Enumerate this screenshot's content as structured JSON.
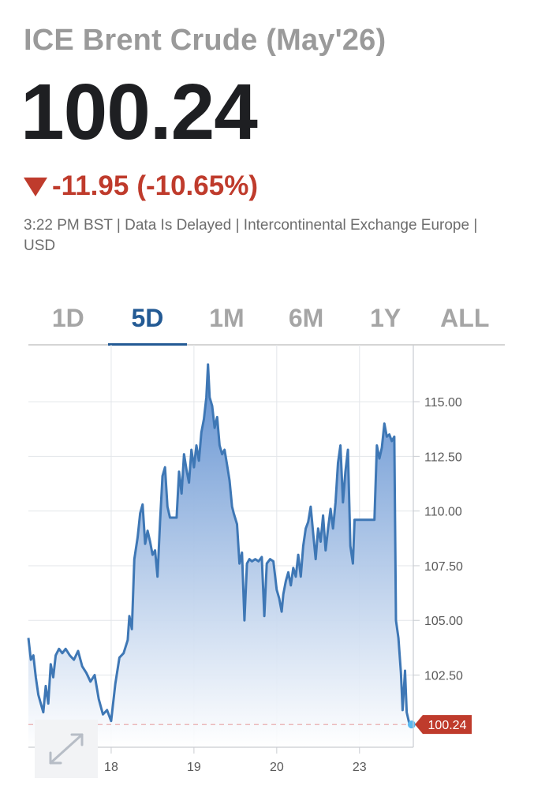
{
  "header": {
    "title": "ICE Brent Crude (May'26)",
    "price": "100.24",
    "change": "-11.95",
    "change_pct": "(-10.65%)",
    "meta": "3:22 PM BST | Data Is Delayed | Intercontinental Exchange Europe | USD"
  },
  "colors": {
    "negative": "#bf3b2c",
    "accent": "#235a94",
    "line": "#3e77b5",
    "area_top": "#5f8fd0",
    "price_marker": "#5bb8ef"
  },
  "tabs": [
    {
      "label": "1D",
      "active": false
    },
    {
      "label": "5D",
      "active": true
    },
    {
      "label": "1M",
      "active": false
    },
    {
      "label": "6M",
      "active": false
    },
    {
      "label": "1Y",
      "active": false
    },
    {
      "label": "ALL",
      "active": false
    }
  ],
  "icons": {
    "expand": "expand-arrows-icon",
    "change": "down-triangle-icon"
  },
  "chart_data": {
    "type": "area",
    "title": "",
    "xlabel": "",
    "ylabel": "",
    "x_ticks": [
      {
        "label": "18",
        "x": 1.0
      },
      {
        "label": "19",
        "x": 2.0
      },
      {
        "label": "20",
        "x": 3.0
      },
      {
        "label": "23",
        "x": 4.0
      }
    ],
    "ylim": [
      99.2,
      117.6
    ],
    "xlim": [
      0,
      4.65
    ],
    "y_ticks": [
      "115.00",
      "112.50",
      "110.00",
      "107.50",
      "105.00",
      "102.50"
    ],
    "y_tick_values": [
      115,
      112.5,
      110,
      107.5,
      105,
      102.5
    ],
    "grid": true,
    "last_price": {
      "label": "100.24",
      "value": 100.24
    },
    "series": [
      {
        "values": [
          [
            0.0,
            104.2
          ],
          [
            0.03,
            103.2
          ],
          [
            0.06,
            103.4
          ],
          [
            0.09,
            102.4
          ],
          [
            0.12,
            101.6
          ],
          [
            0.15,
            101.2
          ],
          [
            0.18,
            100.8
          ],
          [
            0.21,
            102.0
          ],
          [
            0.24,
            101.2
          ],
          [
            0.27,
            103.0
          ],
          [
            0.3,
            102.4
          ],
          [
            0.33,
            103.4
          ],
          [
            0.37,
            103.7
          ],
          [
            0.41,
            103.5
          ],
          [
            0.45,
            103.7
          ],
          [
            0.5,
            103.4
          ],
          [
            0.55,
            103.2
          ],
          [
            0.6,
            103.6
          ],
          [
            0.65,
            102.9
          ],
          [
            0.7,
            102.6
          ],
          [
            0.75,
            102.2
          ],
          [
            0.8,
            102.5
          ],
          [
            0.85,
            101.4
          ],
          [
            0.9,
            100.7
          ],
          [
            0.95,
            100.9
          ],
          [
            1.0,
            100.4
          ],
          [
            1.05,
            102.1
          ],
          [
            1.1,
            103.3
          ],
          [
            1.15,
            103.5
          ],
          [
            1.2,
            104.1
          ],
          [
            1.22,
            105.2
          ],
          [
            1.25,
            104.6
          ],
          [
            1.28,
            107.8
          ],
          [
            1.32,
            108.8
          ],
          [
            1.35,
            109.9
          ],
          [
            1.38,
            110.3
          ],
          [
            1.41,
            108.5
          ],
          [
            1.44,
            109.1
          ],
          [
            1.47,
            108.6
          ],
          [
            1.5,
            108.0
          ],
          [
            1.53,
            108.2
          ],
          [
            1.56,
            107.0
          ],
          [
            1.59,
            109.5
          ],
          [
            1.62,
            111.6
          ],
          [
            1.65,
            112.0
          ],
          [
            1.68,
            110.2
          ],
          [
            1.71,
            109.7
          ],
          [
            1.75,
            109.7
          ],
          [
            1.79,
            109.7
          ],
          [
            1.82,
            111.8
          ],
          [
            1.85,
            110.8
          ],
          [
            1.88,
            112.6
          ],
          [
            1.91,
            111.9
          ],
          [
            1.94,
            111.3
          ],
          [
            1.97,
            112.8
          ],
          [
            2.0,
            112.0
          ],
          [
            2.03,
            113.0
          ],
          [
            2.06,
            112.3
          ],
          [
            2.09,
            113.6
          ],
          [
            2.12,
            114.2
          ],
          [
            2.15,
            115.2
          ],
          [
            2.17,
            116.7
          ],
          [
            2.19,
            115.2
          ],
          [
            2.22,
            114.8
          ],
          [
            2.25,
            113.8
          ],
          [
            2.28,
            114.3
          ],
          [
            2.31,
            113.0
          ],
          [
            2.34,
            112.6
          ],
          [
            2.37,
            112.8
          ],
          [
            2.4,
            112.1
          ],
          [
            2.43,
            111.4
          ],
          [
            2.46,
            110.2
          ],
          [
            2.48,
            109.9
          ],
          [
            2.52,
            109.4
          ],
          [
            2.55,
            107.6
          ],
          [
            2.58,
            108.1
          ],
          [
            2.61,
            105.0
          ],
          [
            2.64,
            107.6
          ],
          [
            2.67,
            107.8
          ],
          [
            2.7,
            107.7
          ],
          [
            2.74,
            107.8
          ],
          [
            2.78,
            107.7
          ],
          [
            2.82,
            107.9
          ],
          [
            2.85,
            105.2
          ],
          [
            2.88,
            107.6
          ],
          [
            2.92,
            107.8
          ],
          [
            2.96,
            107.7
          ],
          [
            3.0,
            106.4
          ],
          [
            3.03,
            106.0
          ],
          [
            3.06,
            105.4
          ],
          [
            3.08,
            106.2
          ],
          [
            3.11,
            106.8
          ],
          [
            3.14,
            107.2
          ],
          [
            3.17,
            106.6
          ],
          [
            3.2,
            107.4
          ],
          [
            3.23,
            107.0
          ],
          [
            3.26,
            108.0
          ],
          [
            3.29,
            107.0
          ],
          [
            3.32,
            108.4
          ],
          [
            3.35,
            109.2
          ],
          [
            3.38,
            109.5
          ],
          [
            3.41,
            110.2
          ],
          [
            3.44,
            109.0
          ],
          [
            3.47,
            107.8
          ],
          [
            3.5,
            109.2
          ],
          [
            3.53,
            108.6
          ],
          [
            3.56,
            109.8
          ],
          [
            3.59,
            108.2
          ],
          [
            3.62,
            109.2
          ],
          [
            3.65,
            110.1
          ],
          [
            3.68,
            109.2
          ],
          [
            3.71,
            110.4
          ],
          [
            3.74,
            112.2
          ],
          [
            3.77,
            113.0
          ],
          [
            3.8,
            110.4
          ],
          [
            3.83,
            111.8
          ],
          [
            3.86,
            112.8
          ],
          [
            3.89,
            108.4
          ],
          [
            3.92,
            107.6
          ],
          [
            3.94,
            109.6
          ],
          [
            4.0,
            109.6
          ],
          [
            4.05,
            109.6
          ],
          [
            4.1,
            109.6
          ],
          [
            4.15,
            109.6
          ],
          [
            4.18,
            109.6
          ],
          [
            4.21,
            113.0
          ],
          [
            4.24,
            112.4
          ],
          [
            4.27,
            112.9
          ],
          [
            4.3,
            114.0
          ],
          [
            4.33,
            113.4
          ],
          [
            4.36,
            113.5
          ],
          [
            4.39,
            113.2
          ],
          [
            4.42,
            113.4
          ],
          [
            4.44,
            105.0
          ],
          [
            4.47,
            104.2
          ],
          [
            4.5,
            102.6
          ],
          [
            4.52,
            100.9
          ],
          [
            4.55,
            102.7
          ],
          [
            4.57,
            100.8
          ],
          [
            4.6,
            100.3
          ],
          [
            4.63,
            100.24
          ]
        ]
      }
    ]
  }
}
